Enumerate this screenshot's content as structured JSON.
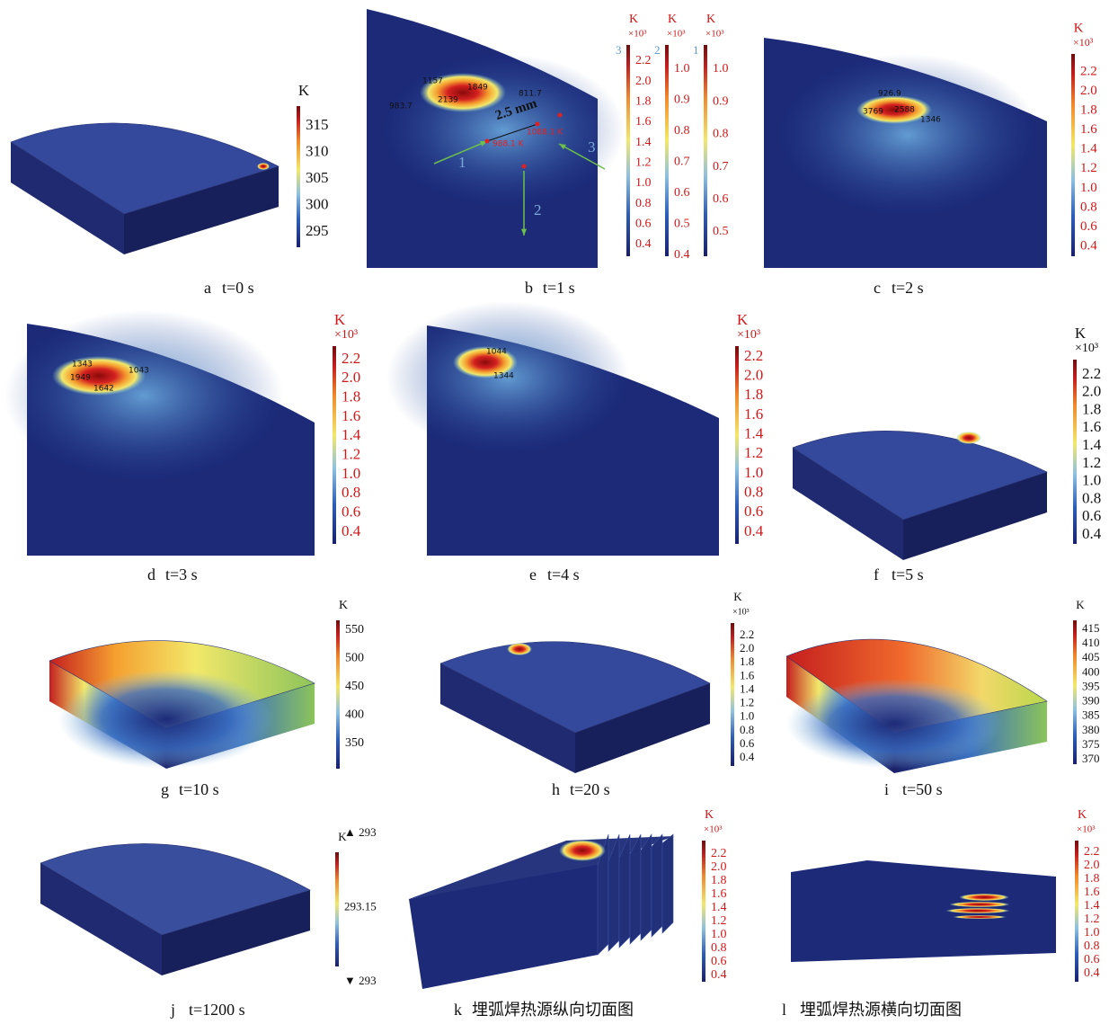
{
  "panels": [
    {
      "letter": "a",
      "caption": "t=0 s",
      "colorbars": [
        {
          "unit": "K",
          "ticks": [
            "315",
            "310",
            "305",
            "300",
            "295"
          ]
        }
      ]
    },
    {
      "letter": "b",
      "caption": "t=1 s",
      "colorbars": [
        {
          "index": "3",
          "unit": "K",
          "scale": "×10³",
          "ticks": [
            "2.2",
            "2.0",
            "1.8",
            "1.6",
            "1.4",
            "1.2",
            "1.0",
            "0.8",
            "0.6",
            "0.4"
          ]
        },
        {
          "index": "2",
          "unit": "K",
          "scale": "×10³",
          "ticks": [
            "1.0",
            "0.9",
            "0.8",
            "0.7",
            "0.6",
            "0.5",
            "0.4"
          ]
        },
        {
          "index": "1",
          "unit": "K",
          "scale": "×10³",
          "ticks": [
            "1.0",
            "0.9",
            "0.8",
            "0.7",
            "0.6",
            "0.5"
          ]
        }
      ],
      "annotations": [
        "1157",
        "1849",
        "2139",
        "811.7",
        "983.7",
        "2.5 mm",
        "988.1 K",
        "1088.1 K",
        "1",
        "2",
        "3"
      ]
    },
    {
      "letter": "c",
      "caption": "t=2 s",
      "colorbars": [
        {
          "unit": "K",
          "scale": "×10³",
          "ticks": [
            "2.2",
            "2.0",
            "1.8",
            "1.6",
            "1.4",
            "1.2",
            "1.0",
            "0.8",
            "0.6",
            "0.4"
          ]
        }
      ],
      "annotations": [
        "926.9",
        "3769",
        "2588",
        "1346"
      ]
    },
    {
      "letter": "d",
      "caption": "t=3 s",
      "colorbars": [
        {
          "unit": "K",
          "scale": "×10³",
          "ticks": [
            "2.2",
            "2.0",
            "1.8",
            "1.6",
            "1.4",
            "1.2",
            "1.0",
            "0.8",
            "0.6",
            "0.4"
          ]
        }
      ],
      "annotations": [
        "1343",
        "1949",
        "1043",
        "1642"
      ]
    },
    {
      "letter": "e",
      "caption": "t=4 s",
      "colorbars": [
        {
          "unit": "K",
          "scale": "×10³",
          "ticks": [
            "2.2",
            "2.0",
            "1.8",
            "1.6",
            "1.4",
            "1.2",
            "1.0",
            "0.8",
            "0.6",
            "0.4"
          ]
        }
      ],
      "annotations": [
        "1044",
        "1344"
      ]
    },
    {
      "letter": "f",
      "caption": "t=5 s",
      "colorbars": [
        {
          "unit": "K",
          "scale": "×10³",
          "ticks": [
            "2.2",
            "2.0",
            "1.8",
            "1.6",
            "1.4",
            "1.2",
            "1.0",
            "0.8",
            "0.6",
            "0.4"
          ]
        }
      ]
    },
    {
      "letter": "g",
      "caption": "t=10 s",
      "colorbars": [
        {
          "unit": "K",
          "ticks": [
            "550",
            "500",
            "450",
            "400",
            "350"
          ]
        }
      ]
    },
    {
      "letter": "h",
      "caption": "t=20 s",
      "colorbars": [
        {
          "unit": "K",
          "scale": "×10³",
          "ticks": [
            "2.2",
            "2.0",
            "1.8",
            "1.6",
            "1.4",
            "1.2",
            "1.0",
            "0.8",
            "0.6",
            "0.4"
          ]
        }
      ]
    },
    {
      "letter": "i",
      "caption": "t=50 s",
      "colorbars": [
        {
          "unit": "K",
          "ticks": [
            "415",
            "410",
            "405",
            "400",
            "395",
            "390",
            "385",
            "380",
            "375",
            "370"
          ]
        }
      ]
    },
    {
      "letter": "j",
      "caption": "t=1200 s",
      "colorbars": [
        {
          "unit": "K",
          "ticks": [
            "▲ 293",
            "293.15",
            "▼ 293"
          ]
        }
      ]
    },
    {
      "letter": "k",
      "caption": "埋弧焊热源纵向切面图",
      "colorbars": [
        {
          "unit": "K",
          "scale": "×10³",
          "ticks": [
            "2.2",
            "2.0",
            "1.8",
            "1.6",
            "1.4",
            "1.2",
            "1.0",
            "0.8",
            "0.6",
            "0.4"
          ]
        }
      ]
    },
    {
      "letter": "l",
      "caption": "埋弧焊热源横向切面图",
      "colorbars": [
        {
          "unit": "K",
          "scale": "×10³",
          "ticks": [
            "2.2",
            "2.0",
            "1.8",
            "1.6",
            "1.4",
            "1.2",
            "1.0",
            "0.8",
            "0.6",
            "0.4"
          ]
        }
      ]
    }
  ]
}
